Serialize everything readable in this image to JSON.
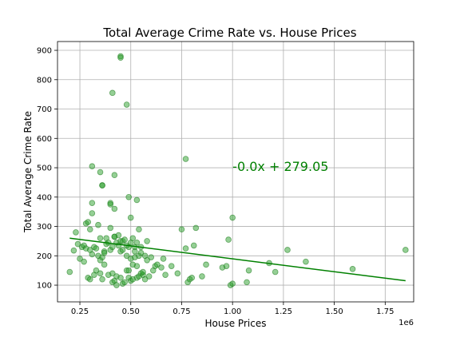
{
  "chart_data": {
    "type": "scatter",
    "title": "Total Average Crime Rate vs. House Prices",
    "xlabel": "House Prices",
    "ylabel": "Total Average Crime Rate",
    "x_offset_label": "1e6",
    "xlim": [
      0.14,
      1.89
    ],
    "ylim": [
      43,
      930
    ],
    "x_ticks": [
      0.25,
      0.5,
      0.75,
      1.0,
      1.25,
      1.5,
      1.75
    ],
    "x_tick_labels": [
      "0.25",
      "0.50",
      "0.75",
      "1.00",
      "1.25",
      "1.50",
      "1.75"
    ],
    "y_ticks": [
      100,
      200,
      300,
      400,
      500,
      600,
      700,
      800,
      900
    ],
    "y_tick_labels": [
      "100",
      "200",
      "300",
      "400",
      "500",
      "600",
      "700",
      "800",
      "900"
    ],
    "grid": true,
    "marker_color": "#2ca02c",
    "fit_line": {
      "color": "#008000",
      "x": [
        0.2,
        1.85
      ],
      "y": [
        260,
        115
      ]
    },
    "annotation": {
      "text": "-0.0x + 279.05",
      "x": 1.0,
      "y": 505,
      "color": "#008000"
    },
    "series": [
      {
        "x": [
          0.2,
          0.22,
          0.23,
          0.24,
          0.25,
          0.26,
          0.27,
          0.27,
          0.28,
          0.28,
          0.29,
          0.29,
          0.3,
          0.3,
          0.3,
          0.31,
          0.31,
          0.31,
          0.32,
          0.32,
          0.33,
          0.33,
          0.34,
          0.34,
          0.35,
          0.35,
          0.35,
          0.36,
          0.36,
          0.36,
          0.37,
          0.37,
          0.37,
          0.38,
          0.38,
          0.39,
          0.39,
          0.4,
          0.4,
          0.4,
          0.41,
          0.41,
          0.41,
          0.42,
          0.42,
          0.42,
          0.43,
          0.43,
          0.43,
          0.44,
          0.44,
          0.45,
          0.45,
          0.45,
          0.46,
          0.46,
          0.46,
          0.47,
          0.47,
          0.48,
          0.48,
          0.48,
          0.49,
          0.49,
          0.49,
          0.5,
          0.5,
          0.5,
          0.51,
          0.51,
          0.51,
          0.52,
          0.52,
          0.52,
          0.53,
          0.53,
          0.53,
          0.54,
          0.54,
          0.54,
          0.55,
          0.55,
          0.55,
          0.56,
          0.56,
          0.57,
          0.57,
          0.58,
          0.58,
          0.59,
          0.6,
          0.61,
          0.62,
          0.63,
          0.65,
          0.66,
          0.67,
          0.7,
          0.73,
          0.75,
          0.77,
          0.78,
          0.79,
          0.8,
          0.81,
          0.82,
          0.85,
          0.87,
          0.95,
          0.97,
          0.98,
          0.99,
          1.0,
          1.0,
          1.07,
          1.08,
          1.18,
          1.21,
          1.27,
          1.36,
          1.59,
          1.85,
          0.45,
          0.45,
          0.41,
          0.48,
          0.31,
          0.35,
          0.42,
          0.36,
          0.49,
          0.53,
          0.4,
          0.42,
          0.77,
          0.5
        ],
        "y": [
          145,
          218,
          280,
          240,
          190,
          230,
          180,
          235,
          310,
          225,
          125,
          315,
          290,
          220,
          120,
          380,
          205,
          345,
          135,
          230,
          150,
          225,
          305,
          200,
          185,
          140,
          260,
          195,
          440,
          120,
          215,
          210,
          170,
          260,
          240,
          135,
          245,
          295,
          220,
          380,
          140,
          230,
          110,
          265,
          360,
          115,
          130,
          245,
          100,
          270,
          235,
          250,
          215,
          125,
          220,
          105,
          250,
          255,
          110,
          200,
          150,
          235,
          150,
          230,
          125,
          245,
          190,
          115,
          260,
          170,
          120,
          230,
          215,
          195,
          165,
          125,
          245,
          130,
          200,
          290,
          210,
          230,
          140,
          135,
          145,
          200,
          120,
          250,
          185,
          130,
          195,
          150,
          165,
          170,
          160,
          190,
          135,
          165,
          140,
          290,
          225,
          110,
          120,
          125,
          235,
          295,
          130,
          170,
          160,
          165,
          255,
          100,
          105,
          330,
          110,
          150,
          175,
          145,
          220,
          180,
          155,
          220,
          880,
          875,
          755,
          715,
          505,
          485,
          475,
          440,
          400,
          390,
          375,
          265,
          530,
          330
        ],
        "color": "#2ca02c"
      }
    ]
  }
}
